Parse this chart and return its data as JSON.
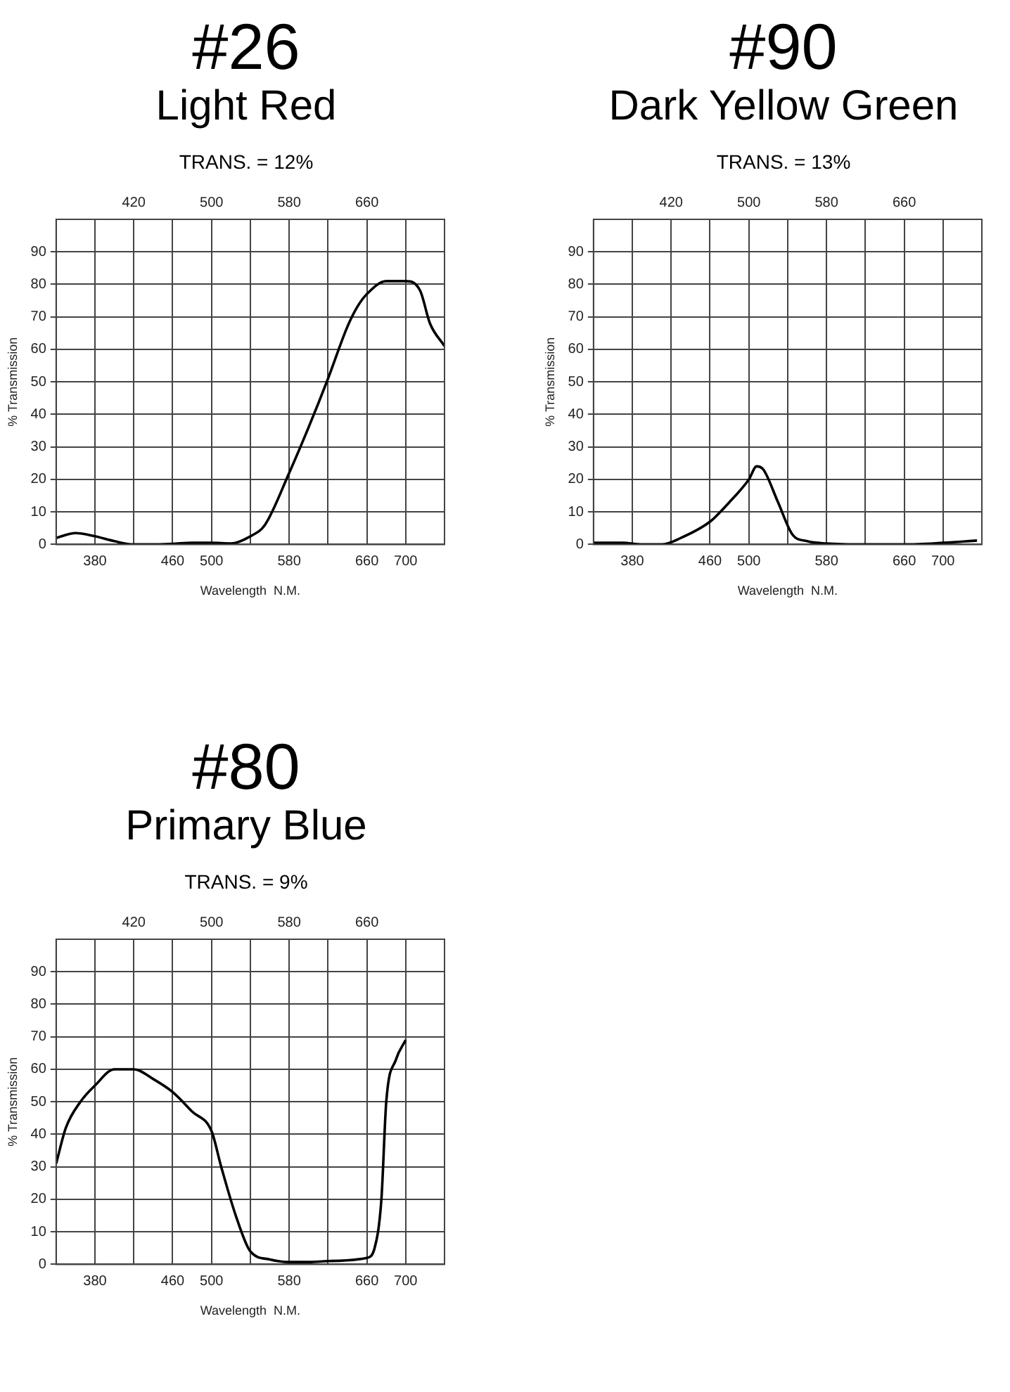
{
  "chart_data": [
    {
      "type": "line",
      "title": "#26",
      "subtitle": "Light Red",
      "annotations": [
        "TRANS. = 12%"
      ],
      "xlabel": "Wavelength  N.M.",
      "ylabel": "% Transmission",
      "xlim": [
        340,
        740
      ],
      "xticks": [
        380,
        {
          "value": 420,
          "label": null
        },
        460,
        500,
        {
          "value": 540,
          "label": null
        },
        580,
        {
          "value": 620,
          "label": null
        },
        660,
        700
      ],
      "x2lim": [
        340,
        740
      ],
      "x2ticks": [
        420,
        500,
        580,
        660
      ],
      "ylim": [
        0,
        100
      ],
      "yticks": [
        0,
        10,
        20,
        30,
        40,
        50,
        60,
        70,
        80,
        90
      ],
      "grid": true,
      "legend": false,
      "marker": "none",
      "line_style": "solid",
      "series": [
        {
          "color": "#000000",
          "x": [
            340,
            360,
            380,
            400,
            420,
            440,
            460,
            480,
            500,
            520,
            540,
            555,
            580,
            600,
            620,
            640,
            650,
            660,
            680,
            700,
            715,
            725,
            740
          ],
          "values": [
            2,
            3.5,
            2.5,
            1,
            0,
            0,
            0.2,
            0.5,
            0.5,
            0.3,
            2.5,
            6,
            22,
            36,
            51,
            67,
            73,
            77,
            81,
            81,
            78,
            68,
            61
          ]
        }
      ]
    },
    {
      "type": "line",
      "title": "#90",
      "subtitle": "Dark Yellow Green",
      "annotations": [
        "TRANS. = 13%"
      ],
      "xlabel": "Wavelength  N.M.",
      "ylabel": "% Transmission",
      "xlim": [
        340,
        740
      ],
      "xticks": [
        380,
        {
          "value": 420,
          "label": null
        },
        460,
        500,
        {
          "value": 540,
          "label": null
        },
        580,
        {
          "value": 620,
          "label": null
        },
        660,
        700
      ],
      "x2lim": [
        340,
        740
      ],
      "x2ticks": [
        420,
        500,
        580,
        660
      ],
      "ylim": [
        0,
        100
      ],
      "yticks": [
        0,
        10,
        20,
        30,
        40,
        50,
        60,
        70,
        80,
        90
      ],
      "grid": true,
      "legend": false,
      "marker": "none",
      "line_style": "solid",
      "series": [
        {
          "color": "#000000",
          "x": [
            340,
            370,
            390,
            410,
            430,
            460,
            480,
            500,
            508,
            515,
            530,
            545,
            560,
            580,
            620,
            660,
            700,
            735
          ],
          "values": [
            0.5,
            0.5,
            0,
            0,
            2,
            7,
            13,
            20,
            24,
            23,
            13,
            3,
            1,
            0.3,
            0,
            0,
            0.5,
            1.2
          ]
        }
      ]
    },
    {
      "type": "line",
      "title": "#80",
      "subtitle": "Primary Blue",
      "annotations": [
        "TRANS. = 9%"
      ],
      "xlabel": "Wavelength  N.M.",
      "ylabel": "% Transmission",
      "xlim": [
        340,
        740
      ],
      "xticks": [
        380,
        {
          "value": 420,
          "label": null
        },
        460,
        500,
        {
          "value": 540,
          "label": null
        },
        580,
        {
          "value": 620,
          "label": null
        },
        660,
        700
      ],
      "x2lim": [
        340,
        740
      ],
      "x2ticks": [
        420,
        500,
        580,
        660
      ],
      "ylim": [
        0,
        100
      ],
      "yticks": [
        0,
        10,
        20,
        30,
        40,
        50,
        60,
        70,
        80,
        90
      ],
      "grid": true,
      "legend": false,
      "marker": "none",
      "line_style": "solid",
      "series": [
        {
          "color": "#000000",
          "x": [
            340,
            350,
            365,
            380,
            400,
            420,
            440,
            460,
            480,
            500,
            510,
            525,
            540,
            560,
            580,
            600,
            620,
            660,
            668,
            675,
            680,
            690,
            700
          ],
          "values": [
            31,
            42,
            50,
            55,
            60,
            60,
            57,
            53,
            47,
            41,
            30,
            15,
            4,
            1.5,
            0.7,
            0.7,
            1,
            2,
            5,
            20,
            50,
            63,
            69
          ]
        }
      ]
    }
  ]
}
